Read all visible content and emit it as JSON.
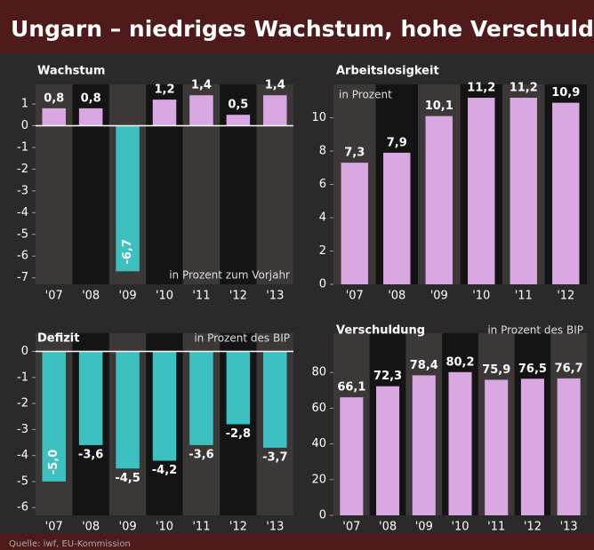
{
  "title": "Ungarn – niedriges Wachstum, hohe Verschuldung",
  "source": "Quelle: iwf, EU-Kommission",
  "chart_data": [
    {
      "type": "bar",
      "title": "Wachstum",
      "annotation": "in Prozent zum Vorjahr",
      "categories": [
        "'07",
        "'08",
        "'09",
        "'10",
        "'11",
        "'12",
        "'13"
      ],
      "values": [
        0.8,
        0.8,
        -6.7,
        1.2,
        1.4,
        0.5,
        1.4
      ],
      "value_labels": [
        "0,8",
        "0,8",
        "-6,7",
        "1,2",
        "1,4",
        "0,5",
        "1,4"
      ],
      "positive_color": "#d9a8e2",
      "negative_color": "#3cc0c0",
      "ylim": [
        -7.3,
        1.9
      ],
      "yticks": [
        1,
        0,
        -1,
        -2,
        -3,
        -4,
        -5,
        -6,
        -7
      ]
    },
    {
      "type": "bar",
      "title": "Arbeitslosigkeit",
      "subtitle": "in Prozent",
      "categories": [
        "'07",
        "'08",
        "'09",
        "'10",
        "'11",
        "'12"
      ],
      "values": [
        7.3,
        7.9,
        10.1,
        11.2,
        11.2,
        10.9
      ],
      "value_labels": [
        "7,3",
        "7,9",
        "10,1",
        "11,2",
        "11,2",
        "10,9"
      ],
      "color": "#d9a8e2",
      "ylim": [
        0,
        12
      ],
      "yticks": [
        0,
        2,
        4,
        6,
        8,
        10
      ]
    },
    {
      "type": "bar",
      "title": "Defizit",
      "subtitle": "in Prozent des BIP",
      "categories": [
        "'07",
        "'08",
        "'09",
        "'10",
        "'11",
        "'12",
        "'13"
      ],
      "values": [
        -5.0,
        -3.6,
        -4.5,
        -4.2,
        -3.6,
        -2.8,
        -3.7
      ],
      "value_labels": [
        "-5,0",
        "-3,6",
        "-4,5",
        "-4,2",
        "-3,6",
        "-2,8",
        "-3,7"
      ],
      "color": "#3cc0c0",
      "ylim": [
        -6.3,
        0.7
      ],
      "yticks": [
        0,
        -1,
        -2,
        -3,
        -4,
        -5,
        -6
      ]
    },
    {
      "type": "bar",
      "title": "Verschuldung",
      "subtitle": "in Prozent des BIP",
      "categories": [
        "'07",
        "'08",
        "'09",
        "'10",
        "'11",
        "'12",
        "'13"
      ],
      "values": [
        66.1,
        72.3,
        78.4,
        80.2,
        75.9,
        76.5,
        76.7
      ],
      "value_labels": [
        "66,1",
        "72,3",
        "78,4",
        "80,2",
        "75,9",
        "76,5",
        "76,7"
      ],
      "color": "#d9a8e2",
      "ylim": [
        0,
        102
      ],
      "yticks": [
        0,
        20,
        40,
        60,
        80
      ]
    }
  ]
}
